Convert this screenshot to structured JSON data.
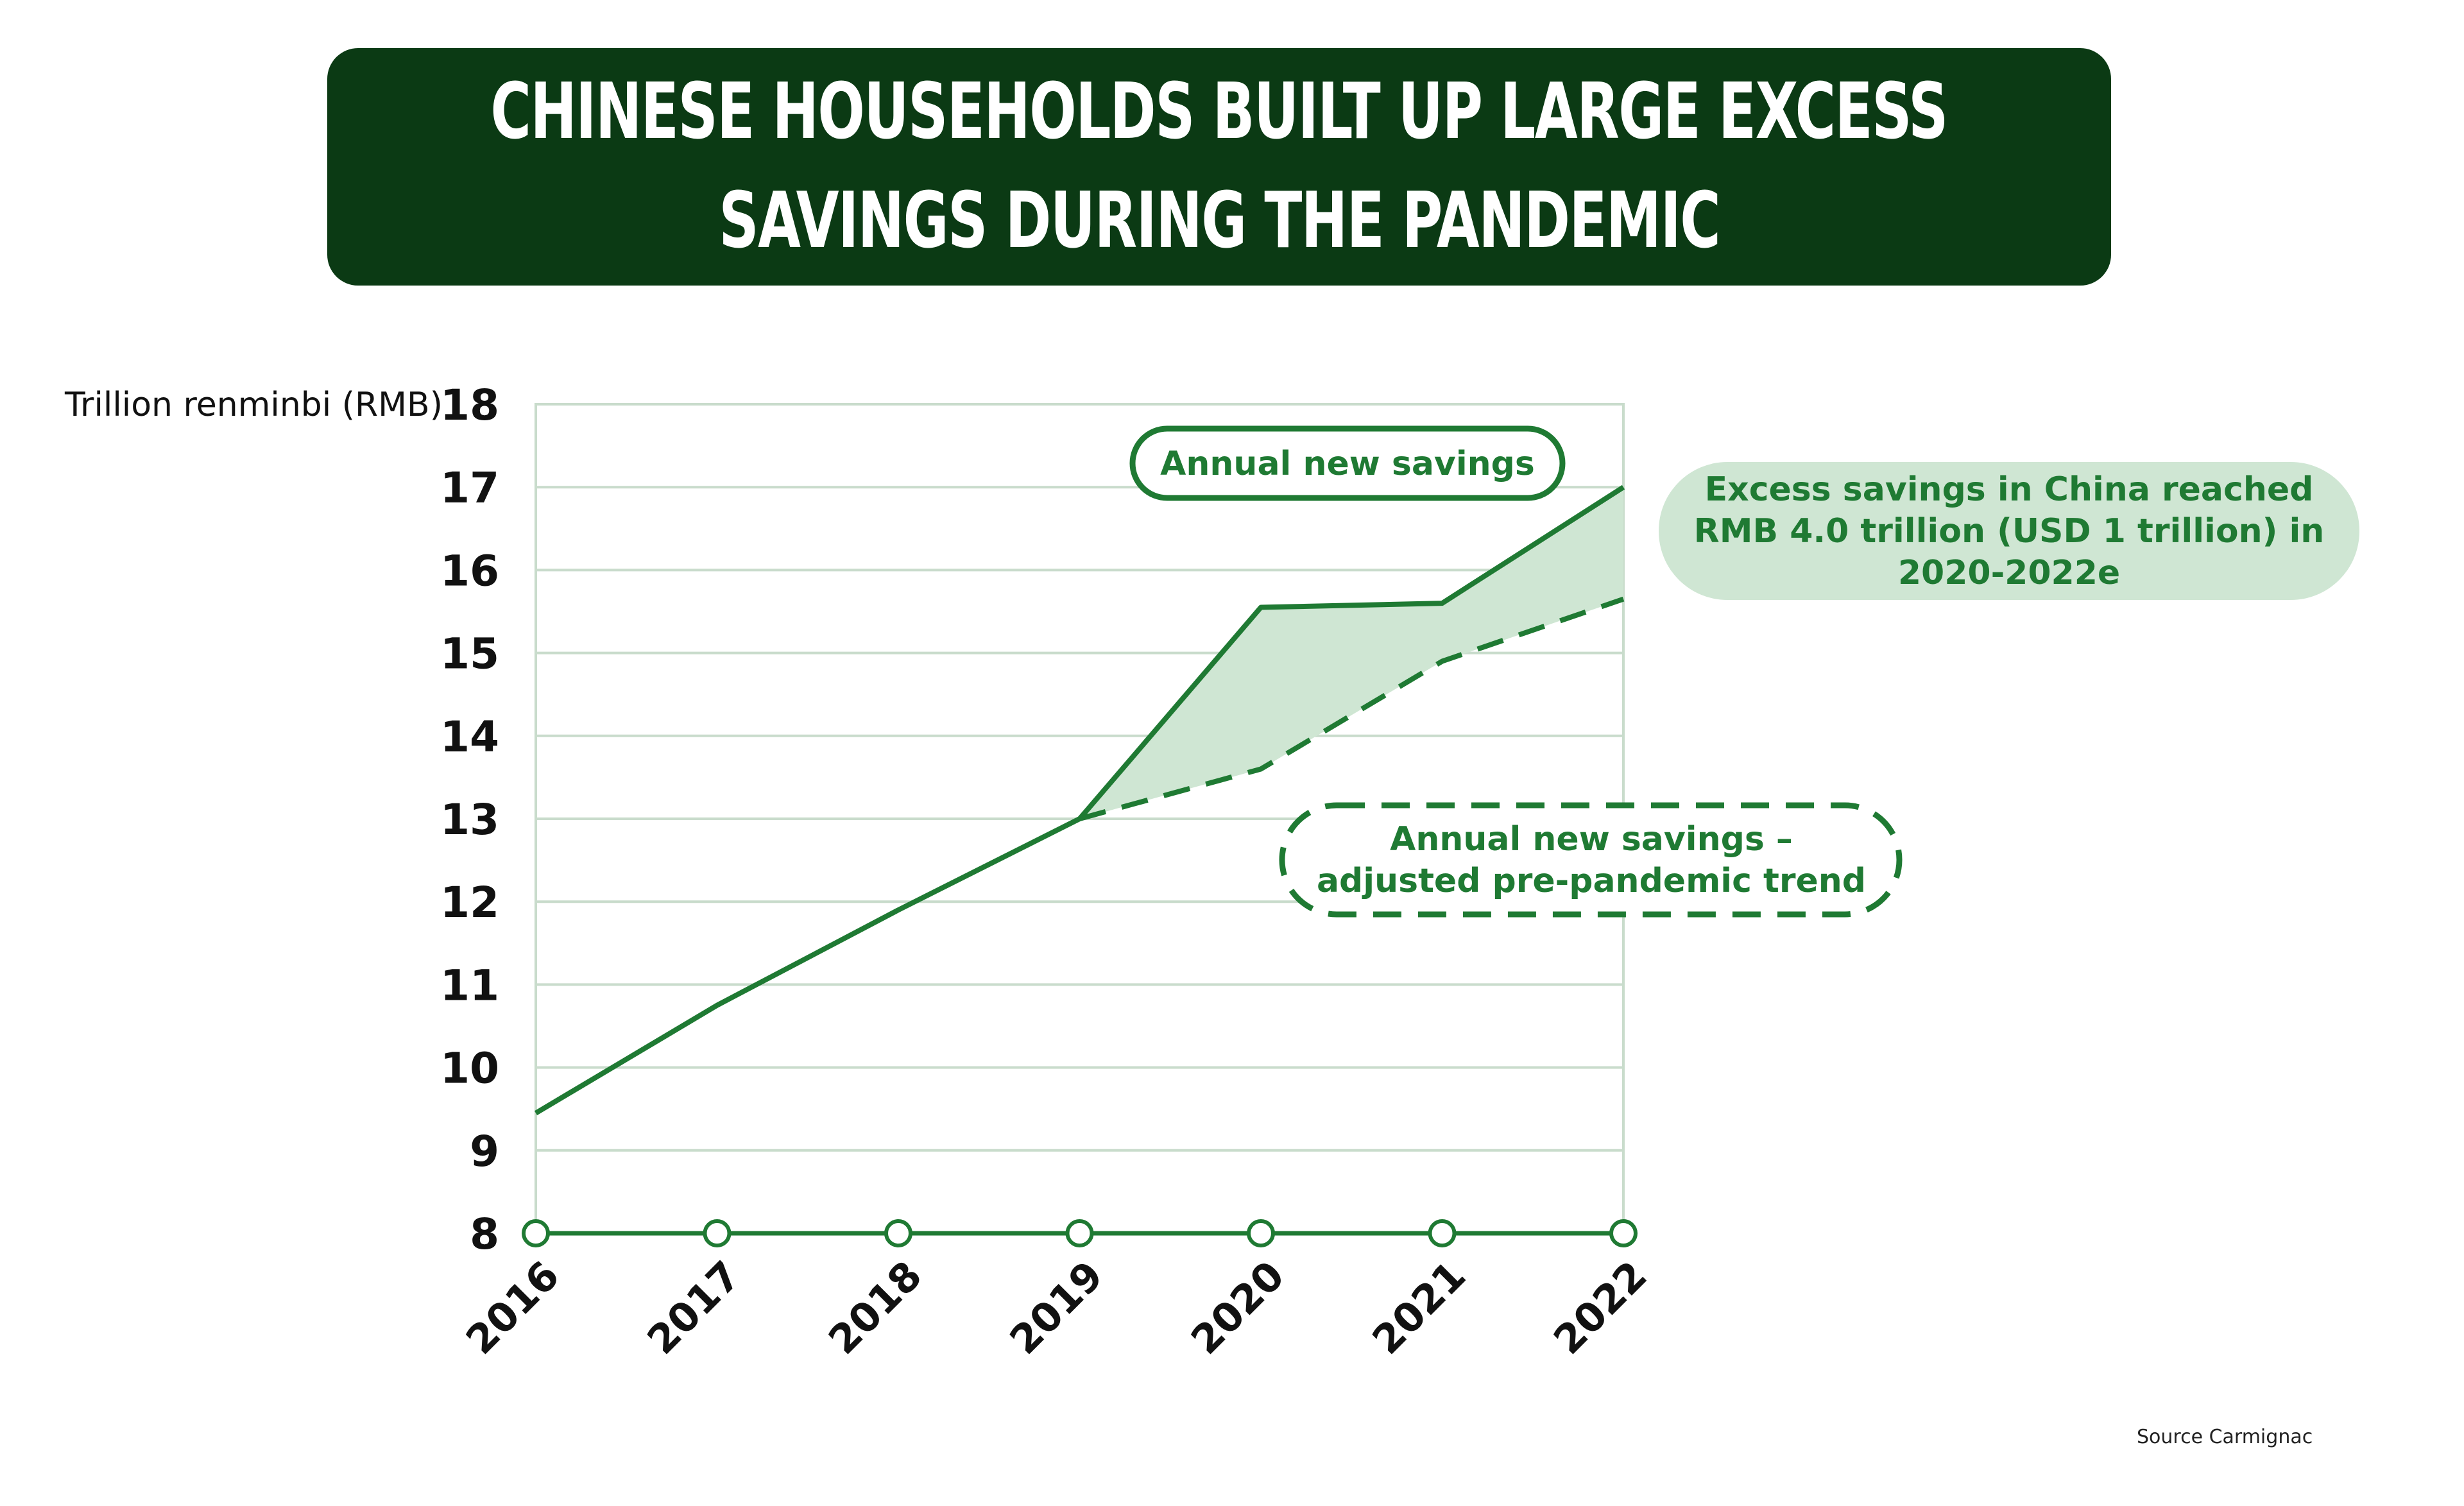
{
  "title": {
    "line1": "CHINESE HOUSEHOLDS BUILT UP LARGE EXCESS",
    "line2": "SAVINGS DURING THE PANDEMIC"
  },
  "source": "Source  Carmignac",
  "colors": {
    "banner": "#0b3a14",
    "line": "#1f7a33",
    "fill": "#cfe6d3",
    "grid": "#c9dccc",
    "excess_bubble": "#cfe6d3"
  },
  "chart_data": {
    "type": "line",
    "ylabel": "Trillion renminbi (RMB)",
    "xlabel": "",
    "ylim": [
      8,
      18
    ],
    "yticks": [
      8,
      9,
      10,
      11,
      12,
      13,
      14,
      15,
      16,
      17,
      18
    ],
    "x": [
      "2016",
      "2017",
      "2018",
      "2019",
      "2020",
      "2021",
      "2022"
    ],
    "grid": true,
    "series": [
      {
        "name": "Annual new savings",
        "style": "solid",
        "values": [
          9.45,
          10.75,
          11.9,
          13.0,
          15.55,
          15.6,
          17.0
        ]
      },
      {
        "name": "Annual new savings – adjusted pre-pandemic trend",
        "style": "dashed",
        "x": [
          "2019",
          "2020",
          "2021",
          "2022"
        ],
        "values": [
          13.0,
          13.6,
          14.9,
          15.65
        ]
      }
    ],
    "annotations": {
      "solid_label": "Annual new savings",
      "dashed_label_line1": "Annual new savings –",
      "dashed_label_line2": "adjusted pre-pandemic trend",
      "excess_line1": "Excess savings in China reached",
      "excess_line2": "RMB 4.0 trillion (USD 1 trillion) in",
      "excess_line3": "2020-2022e"
    }
  }
}
